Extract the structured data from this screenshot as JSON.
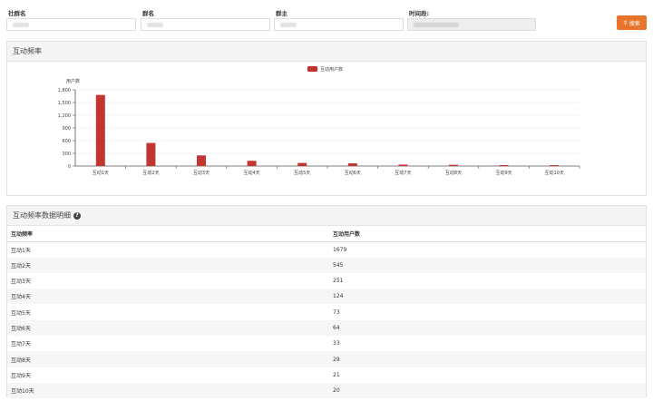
{
  "filters": {
    "community_label": "社群名",
    "group_label": "群名",
    "owner_label": "群主",
    "time_label": "时间段:",
    "search_label": "搜索"
  },
  "chart_panel": {
    "title": "互动频率"
  },
  "chart_data": {
    "type": "bar",
    "categories": [
      "互动1天",
      "互动2天",
      "互动3天",
      "互动4天",
      "互动5天",
      "互动6天",
      "互动7天",
      "互动8天",
      "互动9天",
      "互动10天"
    ],
    "series": [
      {
        "name": "互动用户数",
        "values": [
          1679,
          545,
          251,
          124,
          73,
          64,
          33,
          29,
          21,
          20
        ]
      }
    ],
    "ylabel": "用户数",
    "ylim": [
      0,
      1800
    ],
    "yticks": [
      "0",
      "300",
      "600",
      "900",
      "1,200",
      "1,500",
      "1,800"
    ],
    "grid": true,
    "legend": "top-center",
    "color": "#c23531"
  },
  "table_panel": {
    "title": "互动频率数据明细",
    "headers": [
      "互动频率",
      "互动用户数"
    ],
    "rows": [
      [
        "互动1天",
        "1679"
      ],
      [
        "互动2天",
        "545"
      ],
      [
        "互动3天",
        "251"
      ],
      [
        "互动4天",
        "124"
      ],
      [
        "互动5天",
        "73"
      ],
      [
        "互动6天",
        "64"
      ],
      [
        "互动7天",
        "33"
      ],
      [
        "互动8天",
        "29"
      ],
      [
        "互动9天",
        "21"
      ],
      [
        "互动10天",
        "20"
      ]
    ]
  }
}
